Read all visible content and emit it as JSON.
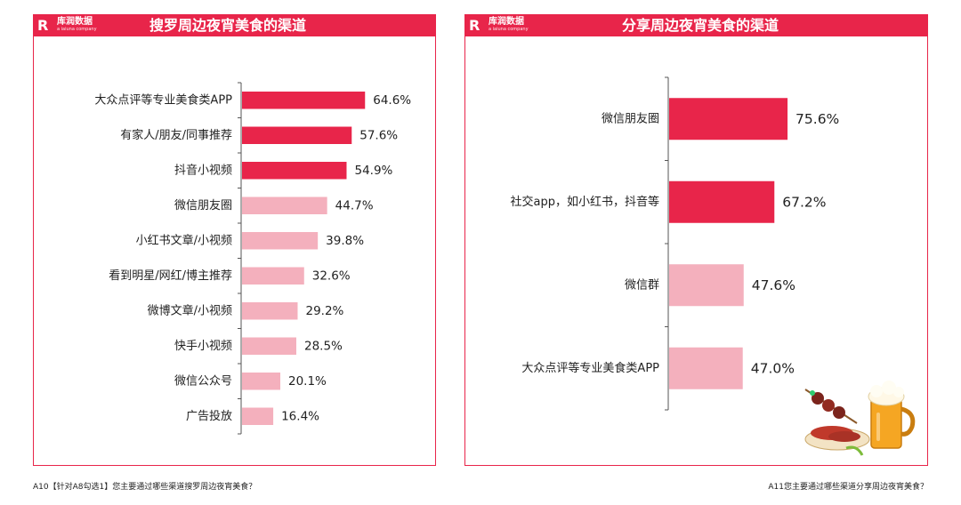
{
  "brand": {
    "name": "库润数据",
    "sub": "a iaiuna company"
  },
  "colors": {
    "accent": "#e8254a",
    "light": "#f4b0bd"
  },
  "chart_data": [
    {
      "type": "bar",
      "orientation": "horizontal",
      "title": "搜罗周边夜宵美食的渠道",
      "categories": [
        "大众点评等专业美食类APP",
        "有家人/朋友/同事推荐",
        "抖音小视频",
        "微信朋友圈",
        "小红书文章/小视频",
        "看到明星/网红/博主推荐",
        "微博文章/小视频",
        "快手小视频",
        "微信公众号",
        "广告投放"
      ],
      "values": [
        64.6,
        57.6,
        54.9,
        44.7,
        39.8,
        32.6,
        29.2,
        28.5,
        20.1,
        16.4
      ],
      "value_labels": [
        "64.6%",
        "57.6%",
        "54.9%",
        "44.7%",
        "39.8%",
        "32.6%",
        "29.2%",
        "28.5%",
        "20.1%",
        "16.4%"
      ],
      "highlight_count": 3,
      "xlim": [
        0,
        100
      ],
      "grid": false
    },
    {
      "type": "bar",
      "orientation": "horizontal",
      "title": "分享周边夜宵美食的渠道",
      "categories": [
        "微信朋友圈",
        "社交app，如小红书，抖音等",
        "微信群",
        "大众点评等专业美食类APP"
      ],
      "values": [
        75.6,
        67.2,
        47.6,
        47.0
      ],
      "value_labels": [
        "75.6%",
        "67.2%",
        "47.6%",
        "47.0%"
      ],
      "highlight_count": 2,
      "xlim": [
        0,
        100
      ],
      "grid": false
    }
  ],
  "footnotes": {
    "left": "A10【针对A8勾选1】您主要通过哪些渠道搜罗周边夜宵美食？",
    "right": "A11您主要通过哪些渠道分享周边夜宵美食？"
  },
  "illustration": {
    "icon": "food-beer-icon"
  }
}
